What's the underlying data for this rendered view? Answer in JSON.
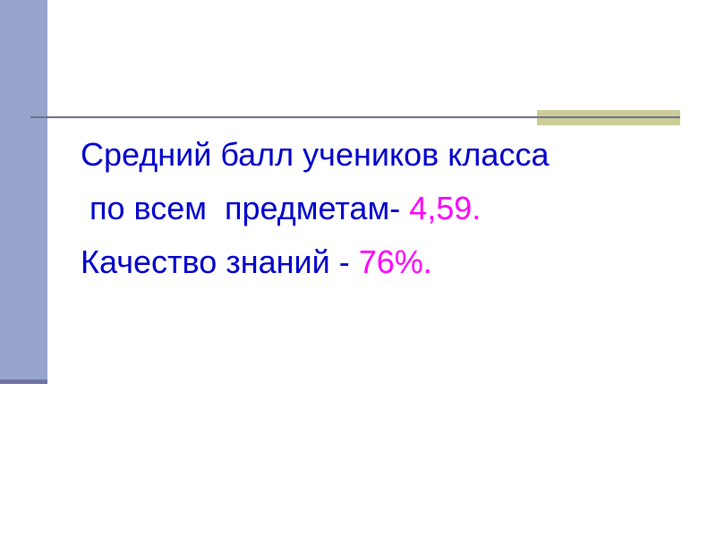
{
  "colors": {
    "text": "#0000cc",
    "highlight": "#ff00ff",
    "sidebar": "#98a4cc",
    "accent": "#cccc99"
  },
  "content": {
    "line1": "Средний балл учеников класса",
    "line2_text": " по всем  предметам- ",
    "line2_value": "4,59.",
    "line3_text": "Качество знаний - ",
    "line3_value": "76%."
  }
}
